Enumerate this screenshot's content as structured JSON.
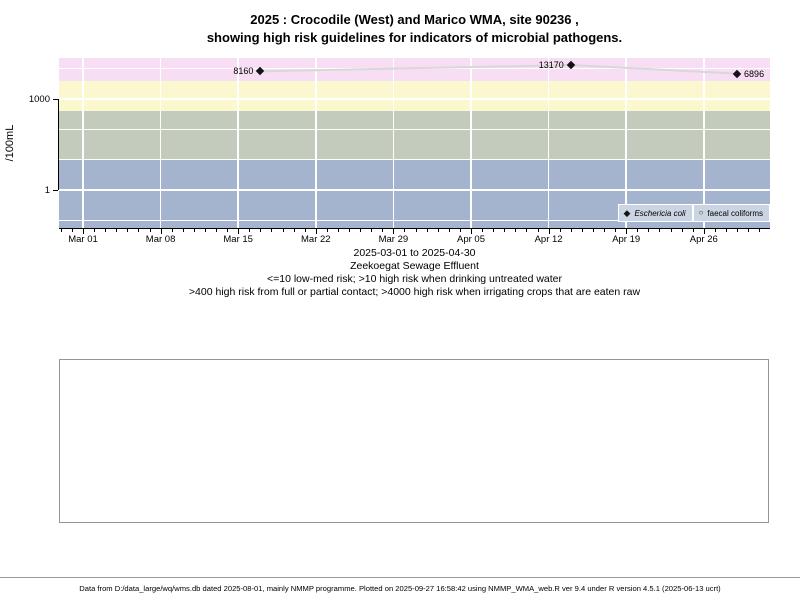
{
  "title": {
    "line1": "2025 : Crocodile (West) and Marico WMA, site 90236 ,",
    "line2": "showing high risk guidelines for indicators of microbial pathogens."
  },
  "chart_data": {
    "type": "scatter",
    "title": "2025 : Crocodile (West) and Marico WMA, site 90236 , showing high risk guidelines for indicators of microbial pathogens.",
    "ylabel": "/100mL",
    "y_scale": "log10",
    "ylim": [
      0.056,
      22500
    ],
    "grid": true,
    "legend_position": "bottom-right",
    "y_ticks": [
      {
        "value": 1000,
        "label": "1000"
      },
      {
        "value": 1,
        "label": "1"
      }
    ],
    "y_gridlines": [
      0.1,
      1,
      10,
      100,
      1000,
      10000
    ],
    "x_range": [
      "2025-03-01",
      "2025-04-30"
    ],
    "x_ticks": [
      {
        "label": "Mar 01",
        "day": 0
      },
      {
        "label": "Mar 08",
        "day": 7
      },
      {
        "label": "Mar 15",
        "day": 14
      },
      {
        "label": "Mar 22",
        "day": 21
      },
      {
        "label": "Mar 29",
        "day": 28
      },
      {
        "label": "Apr 05",
        "day": 35
      },
      {
        "label": "Apr 12",
        "day": 42
      },
      {
        "label": "Apr 19",
        "day": 49
      },
      {
        "label": "Apr 26",
        "day": 56
      }
    ],
    "bands": [
      {
        "name": "high-risk-irrigating-crops",
        "from": 4000,
        "to": "top",
        "color": "#f8def5"
      },
      {
        "name": "high-risk-full-partial-contact",
        "from": 400,
        "to": 4000,
        "color": "#fbf8cf"
      },
      {
        "name": "high-risk-drinking-untreated",
        "from": 10,
        "to": 400,
        "color": "#c3cbbc"
      },
      {
        "name": "low-med-risk",
        "from": "bottom",
        "to": 10,
        "color": "#a4b3ce"
      }
    ],
    "series": [
      {
        "name": "Eschericia coli",
        "marker": "filled-diamond",
        "marker_color": "#141414",
        "line_color": "#d8d8d8",
        "points": [
          {
            "date": "2025-03-17",
            "day": 16,
            "value": 8160,
            "label": "8160",
            "label_side": "left"
          },
          {
            "date": "2025-04-14",
            "day": 44,
            "value": 13170,
            "label": "13170",
            "label_side": "left"
          },
          {
            "date": "2025-04-29",
            "day": 59,
            "value": 6896,
            "label": "6896",
            "label_side": "right"
          }
        ]
      },
      {
        "name": "faecal coliforms",
        "marker": "open-circle",
        "marker_color": "#333333",
        "points": []
      }
    ],
    "legend": [
      {
        "label": "Eschericia coli",
        "marker": "filled-diamond",
        "italic": true
      },
      {
        "label": "faecal coliforms",
        "marker": "open-circle",
        "italic": false
      }
    ]
  },
  "caption": {
    "lines": [
      "2025-03-01 to 2025-04-30",
      "Zeekoegat Sewage Effluent",
      "<=10 low-med risk; >10 high risk when drinking untreated water",
      ">400 high risk from full or partial contact; >4000 high risk when irrigating crops that are eaten raw"
    ]
  },
  "footer": {
    "text": "Data from D:/data_large/wq/wms.db dated 2025-08-01, mainly NMMP programme. Plotted on 2025-09-27 16:58:42 using NMMP_WMA_web.R ver 9.4 under R version 4.5.1 (2025-06-13 ucrt)"
  },
  "colors": {
    "band_irrigation": "#f8def5",
    "band_contact": "#fbf8cf",
    "band_drinking": "#c3cbbc",
    "band_lowmed": "#a4b3ce",
    "gridline": "#ffffff",
    "series_line": "#d8d8d8",
    "marker": "#141414",
    "legend_bg": "#cbd4e2",
    "footer_text": "#00008b",
    "box_border": "#949494"
  }
}
